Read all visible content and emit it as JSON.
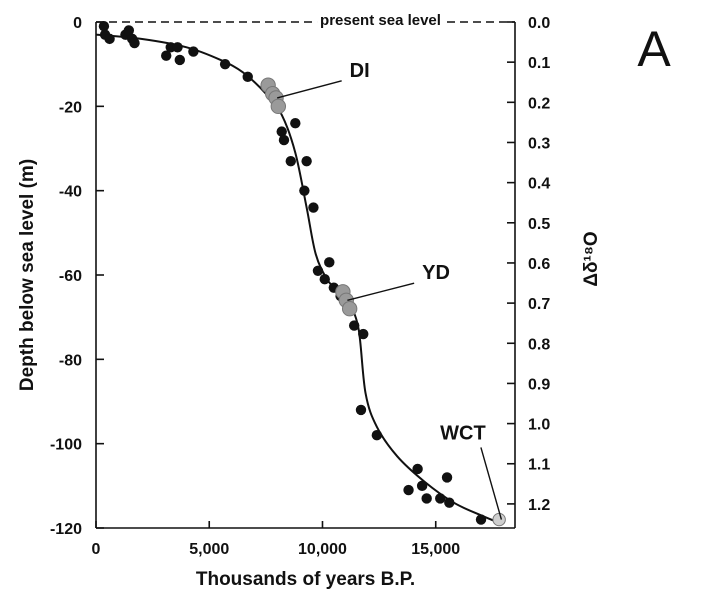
{
  "chart_data": {
    "type": "scatter",
    "title": "",
    "panel_label": "A",
    "xlabel": "Thousands of years B.P.",
    "ylabel": "Depth below sea level (m)",
    "y2label": "Δδ¹⁸O",
    "xlim": [
      0,
      18500
    ],
    "ylim": [
      -120,
      0
    ],
    "y2lim": [
      0.0,
      1.26
    ],
    "x_ticks": [
      0,
      5000,
      10000,
      15000
    ],
    "x_tick_labels": [
      "0",
      "5,000",
      "10,000",
      "15,000"
    ],
    "y_ticks": [
      0,
      -20,
      -40,
      -60,
      -80,
      -100,
      -120
    ],
    "y_tick_labels": [
      "0",
      "-20",
      "-40",
      "-60",
      "-80",
      "-100",
      "-120"
    ],
    "y2_ticks": [
      0.0,
      0.1,
      0.2,
      0.3,
      0.4,
      0.5,
      0.6,
      0.7,
      0.8,
      0.9,
      1.0,
      1.1,
      1.2
    ],
    "y2_tick_labels": [
      "0.0",
      "0.1",
      "0.2",
      "0.3",
      "0.4",
      "0.5",
      "0.6",
      "0.7",
      "0.8",
      "0.9",
      "1.0",
      "1.1",
      "1.2"
    ],
    "grid": false,
    "reference_line": {
      "y": 0,
      "label": "present sea level",
      "style": "dashed"
    },
    "annotations": [
      {
        "text": "DI",
        "x": 8000,
        "y": -18,
        "label_x": 11200,
        "label_y": -13
      },
      {
        "text": "YD",
        "x": 11100,
        "y": -66,
        "label_x": 14400,
        "label_y": -61
      },
      {
        "text": "WCT",
        "x": 17900,
        "y": -118,
        "label_x": 16200,
        "label_y": -99
      }
    ],
    "series": [
      {
        "marker": "filled-circle",
        "color": "#111111",
        "points": [
          {
            "x": 350,
            "y": -1
          },
          {
            "x": 400,
            "y": -3
          },
          {
            "x": 600,
            "y": -4
          },
          {
            "x": 1300,
            "y": -3
          },
          {
            "x": 1450,
            "y": -2
          },
          {
            "x": 1600,
            "y": -4
          },
          {
            "x": 1700,
            "y": -5
          },
          {
            "x": 3100,
            "y": -8
          },
          {
            "x": 3300,
            "y": -6
          },
          {
            "x": 3600,
            "y": -6
          },
          {
            "x": 3700,
            "y": -9
          },
          {
            "x": 4300,
            "y": -7
          },
          {
            "x": 5700,
            "y": -10
          },
          {
            "x": 6700,
            "y": -13
          },
          {
            "x": 8200,
            "y": -26
          },
          {
            "x": 8300,
            "y": -28
          },
          {
            "x": 8600,
            "y": -33
          },
          {
            "x": 8800,
            "y": -24
          },
          {
            "x": 9300,
            "y": -33
          },
          {
            "x": 9200,
            "y": -40
          },
          {
            "x": 9600,
            "y": -44
          },
          {
            "x": 9800,
            "y": -59
          },
          {
            "x": 10100,
            "y": -61
          },
          {
            "x": 10300,
            "y": -57
          },
          {
            "x": 10500,
            "y": -63
          },
          {
            "x": 10800,
            "y": -65
          },
          {
            "x": 11400,
            "y": -72
          },
          {
            "x": 11800,
            "y": -74
          },
          {
            "x": 11700,
            "y": -92
          },
          {
            "x": 12400,
            "y": -98
          },
          {
            "x": 14200,
            "y": -106
          },
          {
            "x": 13800,
            "y": -111
          },
          {
            "x": 14400,
            "y": -110
          },
          {
            "x": 14600,
            "y": -113
          },
          {
            "x": 15200,
            "y": -113
          },
          {
            "x": 15500,
            "y": -108
          },
          {
            "x": 15600,
            "y": -114
          },
          {
            "x": 17000,
            "y": -118
          }
        ]
      },
      {
        "marker": "gray-cluster",
        "color": "#9a9a9a",
        "points": [
          {
            "x": 7600,
            "y": -15
          },
          {
            "x": 7800,
            "y": -17
          },
          {
            "x": 7950,
            "y": -18
          },
          {
            "x": 8050,
            "y": -20
          },
          {
            "x": 10900,
            "y": -64
          },
          {
            "x": 11050,
            "y": -66
          },
          {
            "x": 11200,
            "y": -68
          },
          {
            "x": 17800,
            "y": -118
          }
        ]
      },
      {
        "type": "line",
        "color": "#111111",
        "points": [
          {
            "x": 0,
            "y": -3
          },
          {
            "x": 2000,
            "y": -4
          },
          {
            "x": 4000,
            "y": -6
          },
          {
            "x": 5500,
            "y": -9
          },
          {
            "x": 6500,
            "y": -12
          },
          {
            "x": 7500,
            "y": -17
          },
          {
            "x": 8200,
            "y": -22
          },
          {
            "x": 8800,
            "y": -31
          },
          {
            "x": 9300,
            "y": -44
          },
          {
            "x": 9700,
            "y": -55
          },
          {
            "x": 10200,
            "y": -61
          },
          {
            "x": 10700,
            "y": -64
          },
          {
            "x": 11200,
            "y": -67
          },
          {
            "x": 11600,
            "y": -73
          },
          {
            "x": 11900,
            "y": -88
          },
          {
            "x": 12400,
            "y": -96
          },
          {
            "x": 13300,
            "y": -103
          },
          {
            "x": 14500,
            "y": -109
          },
          {
            "x": 15800,
            "y": -114
          },
          {
            "x": 17000,
            "y": -117
          },
          {
            "x": 17900,
            "y": -119
          }
        ]
      }
    ]
  }
}
